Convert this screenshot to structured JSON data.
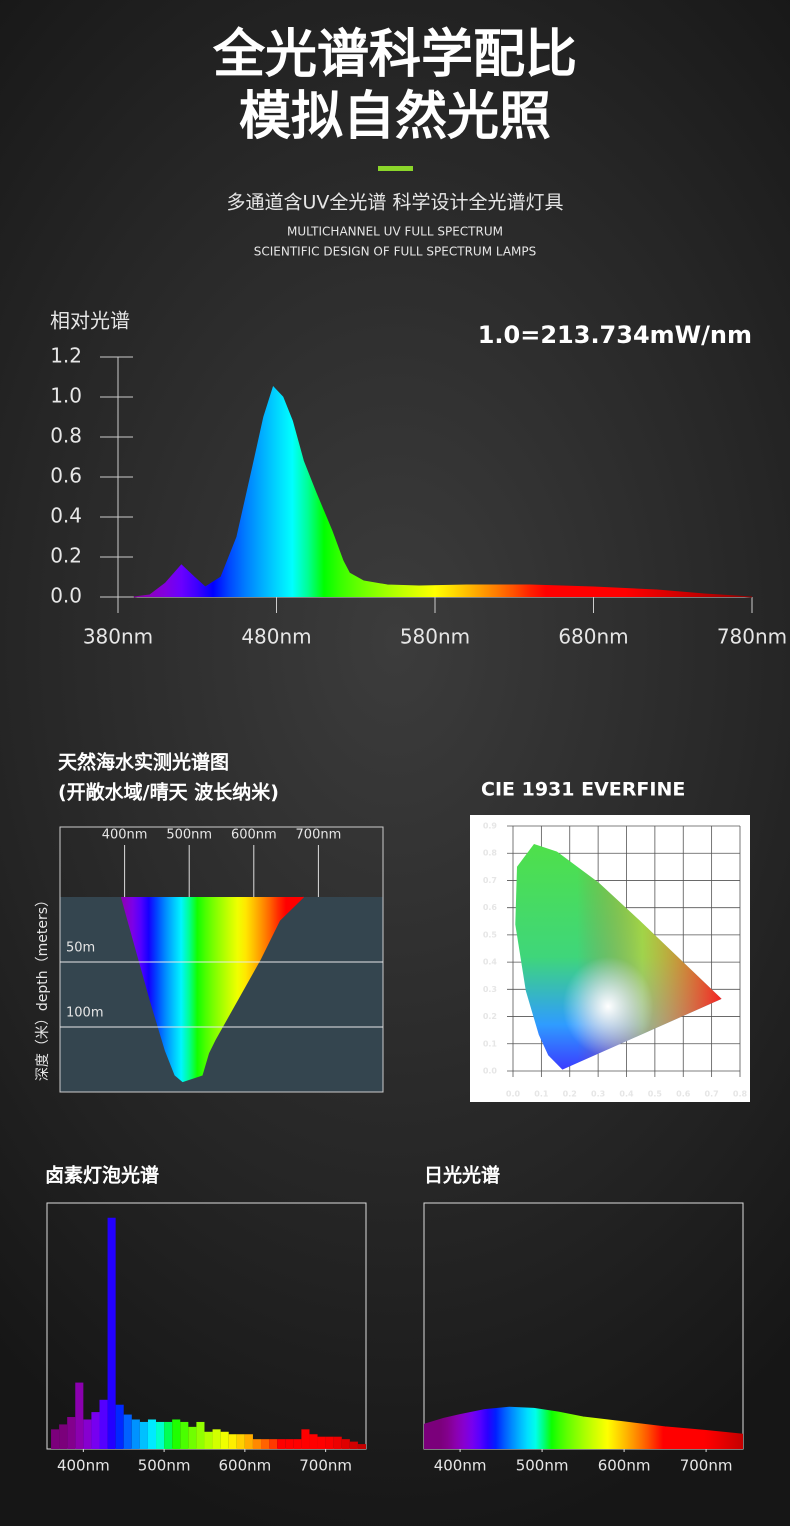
{
  "header": {
    "title_lines": [
      "全光谱科学配比",
      "模拟自然光照"
    ],
    "subtitle": "多通道含UV全光谱 科学设计全光谱灯具",
    "english_lines": [
      "MULTICHANNEL UV FULL SPECTRUM",
      "SCIENTIFIC DESIGN OF FULL SPECTRUM LAMPS"
    ]
  },
  "chart_data": [
    {
      "type": "area",
      "y_label": "相对光谱",
      "annotation": "1.0=213.734mW/nm",
      "x": [
        390,
        400,
        410,
        420,
        428,
        435,
        445,
        455,
        465,
        472,
        478,
        484,
        490,
        497,
        505,
        515,
        522,
        526,
        535,
        550,
        570,
        600,
        640,
        680,
        720,
        750,
        780
      ],
      "values": [
        0,
        0.01,
        0.07,
        0.16,
        0.1,
        0.05,
        0.1,
        0.3,
        0.65,
        0.9,
        1.05,
        1.0,
        0.88,
        0.68,
        0.52,
        0.33,
        0.18,
        0.12,
        0.08,
        0.06,
        0.055,
        0.06,
        0.06,
        0.05,
        0.035,
        0.015,
        0
      ],
      "xlim": [
        380,
        780
      ],
      "xticks": [
        {
          "value": 380,
          "label": "380nm"
        },
        {
          "value": 480,
          "label": "480nm"
        },
        {
          "value": 580,
          "label": "580nm"
        },
        {
          "value": 680,
          "label": "680nm"
        },
        {
          "value": 780,
          "label": "780nm"
        }
      ],
      "ylim": [
        0,
        1.2
      ],
      "yticks": [
        {
          "value": 0,
          "label": "0.0"
        },
        0.2,
        0.4,
        0.6,
        0.8,
        {
          "value": 1,
          "label": "1.0"
        },
        1.2
      ]
    },
    {
      "type": "area",
      "title": [
        "天然海水实测光谱图",
        "(开敞水域/晴天  波长纳米)"
      ],
      "y_label": "深度（米）depth（meters）",
      "x": [
        395,
        409,
        440,
        463,
        478,
        490,
        520,
        530,
        540,
        610,
        640,
        677
      ],
      "values": [
        0,
        25,
        80,
        118,
        137,
        142,
        137,
        120,
        110,
        48,
        18,
        0
      ],
      "xlim": [
        300,
        800
      ],
      "xticks": [
        {
          "value": 400,
          "label": "400nm"
        },
        {
          "value": 500,
          "label": "500nm"
        },
        {
          "value": 600,
          "label": "600nm"
        },
        {
          "value": 700,
          "label": "700nm"
        }
      ],
      "ylim": [
        0,
        150
      ],
      "y_inverted": true,
      "yticks": [
        {
          "value": 50,
          "label": "50m"
        },
        {
          "value": 100,
          "label": "100m"
        }
      ]
    },
    {
      "type": "line",
      "title": "CIE 1931 EVERFINE",
      "x": [
        0.174,
        0.124,
        0.091,
        0.045,
        0.008,
        0.014,
        0.074,
        0.155,
        0.302,
        0.444,
        0.627,
        0.735
      ],
      "values": [
        0.005,
        0.058,
        0.133,
        0.295,
        0.538,
        0.75,
        0.834,
        0.806,
        0.692,
        0.555,
        0.373,
        0.265
      ],
      "xlim": [
        0,
        0.8
      ],
      "ylim": [
        0,
        0.9
      ],
      "grid": true,
      "xticks": [
        {
          "value": 0,
          "label": "0.0"
        },
        0.1,
        0.2,
        0.3,
        0.4,
        0.5,
        0.6,
        0.7,
        0.8
      ],
      "yticks": [
        {
          "value": 0,
          "label": "0.0"
        },
        0.1,
        0.2,
        0.3,
        0.4,
        0.5,
        0.6,
        0.7,
        0.8,
        0.9
      ]
    },
    {
      "type": "histogram",
      "title": "卤素灯泡光谱",
      "bins": [
        360,
        370,
        380,
        390,
        400,
        410,
        420,
        430,
        440,
        450,
        460,
        470,
        480,
        490,
        500,
        510,
        520,
        530,
        540,
        550,
        560,
        570,
        580,
        590,
        600,
        610,
        620,
        630,
        640,
        650,
        660,
        670,
        680,
        690,
        700,
        710,
        720,
        730,
        740,
        750
      ],
      "values": [
        8,
        10,
        13,
        27,
        12,
        15,
        20,
        94,
        18,
        14,
        12,
        11,
        12,
        11,
        11,
        12,
        11,
        9,
        11,
        7,
        8,
        7,
        6,
        6,
        6,
        4,
        4,
        4,
        4,
        4,
        4,
        8,
        6,
        5,
        5,
        5,
        4,
        3,
        2
      ],
      "xlim": [
        355,
        750
      ],
      "ylim": [
        0,
        100
      ],
      "xticks": [
        {
          "value": 400,
          "label": "400nm"
        },
        {
          "value": 500,
          "label": "500nm"
        },
        {
          "value": 600,
          "label": "600nm"
        },
        {
          "value": 700,
          "label": "700nm"
        }
      ]
    },
    {
      "type": "area",
      "title": "日光光谱",
      "x": [
        356,
        380,
        400,
        430,
        460,
        490,
        520,
        550,
        600,
        650,
        700,
        745
      ],
      "values": [
        10,
        12.5,
        14,
        16,
        17,
        16.5,
        15,
        13,
        11,
        9,
        7.5,
        6
      ],
      "xlim": [
        356,
        745
      ],
      "ylim": [
        0,
        100
      ],
      "xticks": [
        {
          "value": 400,
          "label": "400nm"
        },
        {
          "value": 500,
          "label": "500nm"
        },
        {
          "value": 600,
          "label": "600nm"
        },
        {
          "value": 700,
          "label": "700nm"
        }
      ]
    }
  ]
}
